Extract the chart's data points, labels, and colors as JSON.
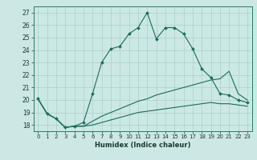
{
  "xlabel": "Humidex (Indice chaleur)",
  "background_color": "#cce8e5",
  "grid_color": "#aacfcc",
  "line_color": "#1a6b5a",
  "xlim": [
    -0.5,
    23.5
  ],
  "ylim": [
    17.5,
    27.5
  ],
  "xticks": [
    0,
    1,
    2,
    3,
    4,
    5,
    6,
    7,
    8,
    9,
    10,
    11,
    12,
    13,
    14,
    15,
    16,
    17,
    18,
    19,
    20,
    21,
    22,
    23
  ],
  "yticks": [
    18,
    19,
    20,
    21,
    22,
    23,
    24,
    25,
    26,
    27
  ],
  "series1_x": [
    0,
    1,
    2,
    3,
    4,
    5,
    6,
    7,
    8,
    9,
    10,
    11,
    12,
    13,
    14,
    15,
    16,
    17,
    18,
    19,
    20,
    21,
    22,
    23
  ],
  "series1_y": [
    20.1,
    18.9,
    18.5,
    17.8,
    17.9,
    18.2,
    20.5,
    23.0,
    24.1,
    24.3,
    25.3,
    25.8,
    27.0,
    24.9,
    25.8,
    25.8,
    25.3,
    24.1,
    22.5,
    21.8,
    20.5,
    20.4,
    20.0,
    19.8
  ],
  "series2_x": [
    0,
    1,
    2,
    3,
    4,
    5,
    6,
    7,
    8,
    9,
    10,
    11,
    12,
    13,
    14,
    15,
    16,
    17,
    18,
    19,
    20,
    21,
    22,
    23
  ],
  "series2_y": [
    20.1,
    18.9,
    18.5,
    17.8,
    17.9,
    17.9,
    18.3,
    18.7,
    19.0,
    19.3,
    19.6,
    19.9,
    20.1,
    20.4,
    20.6,
    20.8,
    21.0,
    21.2,
    21.4,
    21.6,
    21.7,
    22.3,
    20.5,
    20.0
  ],
  "series3_x": [
    0,
    1,
    2,
    3,
    4,
    5,
    6,
    7,
    8,
    9,
    10,
    11,
    12,
    13,
    14,
    15,
    16,
    17,
    18,
    19,
    20,
    21,
    22,
    23
  ],
  "series3_y": [
    20.1,
    18.9,
    18.5,
    17.8,
    17.9,
    17.9,
    18.0,
    18.2,
    18.4,
    18.6,
    18.8,
    19.0,
    19.1,
    19.2,
    19.3,
    19.4,
    19.5,
    19.6,
    19.7,
    19.8,
    19.7,
    19.7,
    19.6,
    19.5
  ]
}
